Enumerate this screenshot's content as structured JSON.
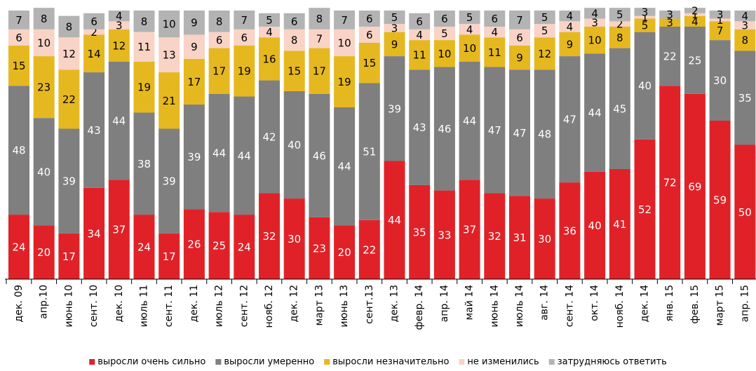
{
  "chart_data": {
    "type": "stacked_bar",
    "categories": [
      "дек. 09",
      "апр.10",
      "июнь 10",
      "сент. 10",
      "дек. 10",
      "июль 11",
      "сент. 11",
      "дек. 11",
      "июль 12",
      "сент. 12",
      "нояб. 12",
      "дек. 12",
      "март 13",
      "июнь 13",
      "сент.13",
      "дек. 13",
      "февр. 14",
      "апр. 14",
      "май 14",
      "июнь 14",
      "июль 14",
      "авг. 14",
      "сент. 14",
      "окт. 14",
      "нояб. 14",
      "дек. 14",
      "янв. 15",
      "фев. 15",
      "март 15",
      "апр. 15"
    ],
    "series": [
      {
        "name": "выросли очень сильно",
        "color": "#e02228",
        "values": [
          24,
          20,
          17,
          34,
          37,
          24,
          17,
          26,
          25,
          24,
          32,
          30,
          23,
          20,
          22,
          44,
          35,
          33,
          37,
          32,
          31,
          30,
          36,
          40,
          41,
          52,
          72,
          69,
          59,
          50
        ]
      },
      {
        "name": "выросли умеренно",
        "color": "#7f7f7f",
        "values": [
          48,
          40,
          39,
          43,
          44,
          38,
          39,
          39,
          44,
          44,
          42,
          40,
          46,
          44,
          51,
          39,
          43,
          46,
          44,
          47,
          47,
          48,
          47,
          44,
          45,
          40,
          22,
          25,
          30,
          35
        ]
      },
      {
        "name": "выросли незначительно",
        "color": "#e6b820",
        "values": [
          15,
          23,
          22,
          14,
          12,
          19,
          21,
          17,
          17,
          19,
          16,
          15,
          17,
          19,
          15,
          9,
          11,
          10,
          10,
          11,
          9,
          12,
          9,
          10,
          8,
          5,
          3,
          4,
          7,
          8
        ]
      },
      {
        "name": "не изменились",
        "color": "#f8d3c6",
        "values": [
          6,
          10,
          12,
          2,
          3,
          11,
          13,
          9,
          6,
          6,
          4,
          8,
          7,
          10,
          6,
          3,
          4,
          5,
          4,
          4,
          6,
          5,
          4,
          3,
          2,
          1,
          null,
          1,
          1,
          3
        ]
      },
      {
        "name": "затрудняюсь ответить",
        "color": "#b3b3b3",
        "values": [
          7,
          8,
          8,
          6,
          4,
          8,
          10,
          9,
          8,
          7,
          5,
          6,
          8,
          7,
          6,
          5,
          6,
          6,
          5,
          6,
          7,
          5,
          4,
          4,
          5,
          3,
          3,
          2,
          3,
          4
        ]
      }
    ],
    "ylim": [
      0,
      100
    ]
  }
}
